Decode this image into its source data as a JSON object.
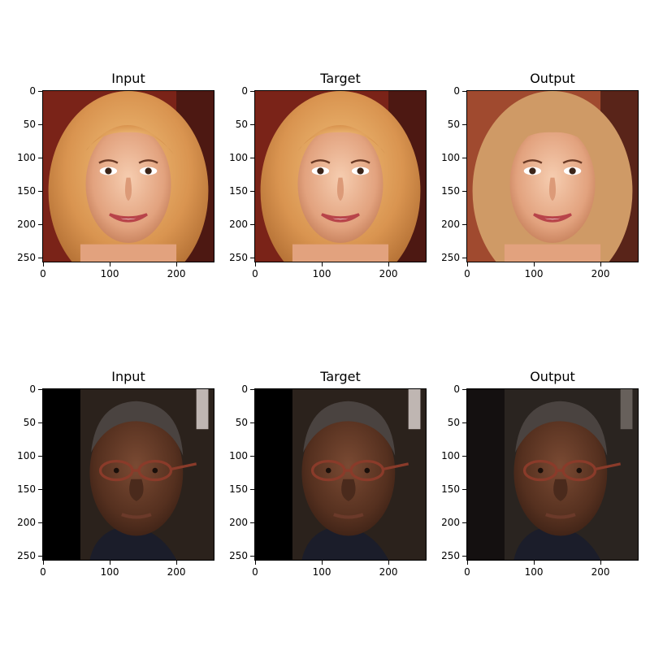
{
  "figure": {
    "rows": [
      {
        "subject": "blonde-woman",
        "panels": [
          {
            "title": "Input"
          },
          {
            "title": "Target"
          },
          {
            "title": "Output"
          }
        ]
      },
      {
        "subject": "man-with-glasses",
        "panels": [
          {
            "title": "Input"
          },
          {
            "title": "Target"
          },
          {
            "title": "Output"
          }
        ]
      }
    ],
    "axes": {
      "x_ticks": [
        "0",
        "100",
        "200"
      ],
      "y_ticks": [
        "0",
        "50",
        "100",
        "150",
        "200",
        "250"
      ]
    }
  }
}
